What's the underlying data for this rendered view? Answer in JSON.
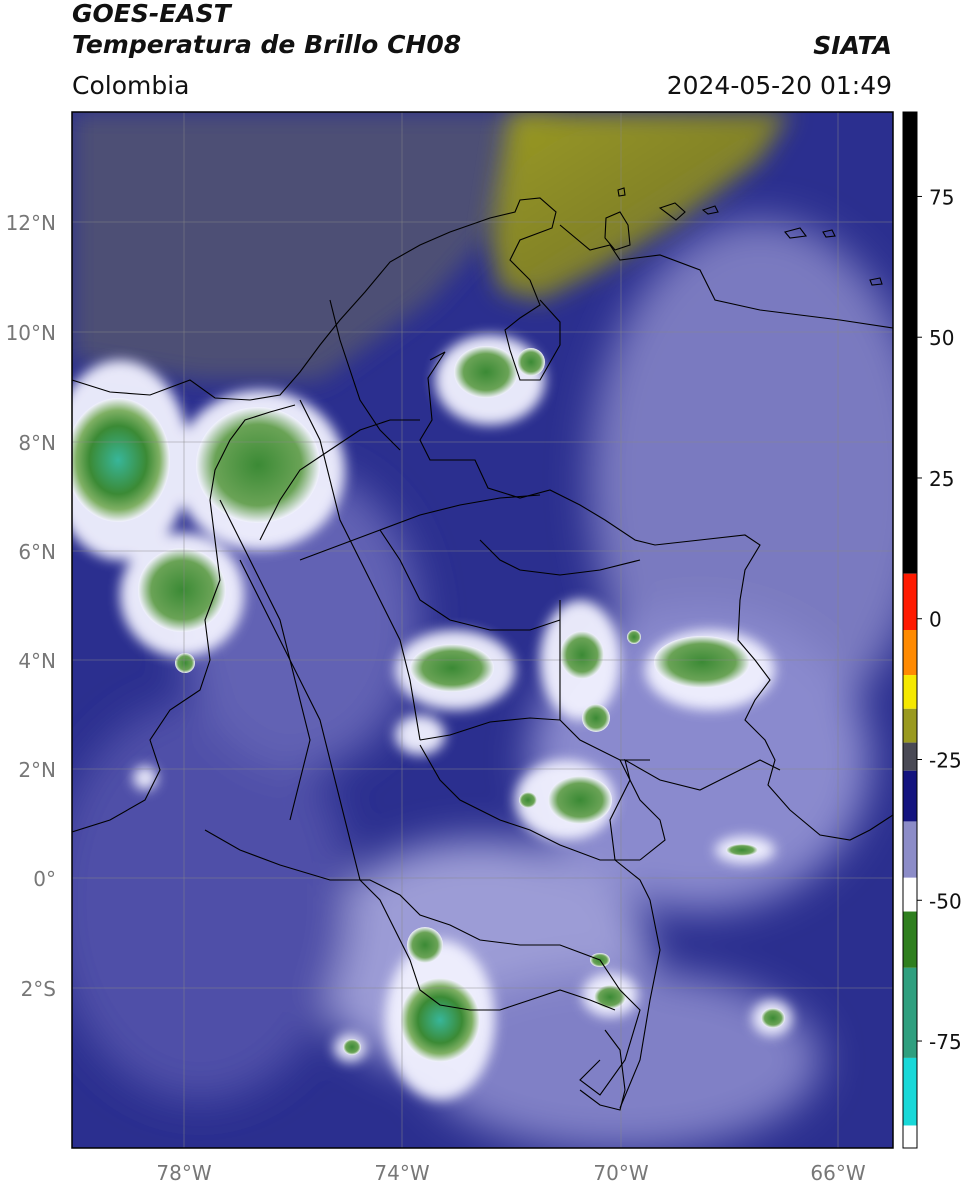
{
  "header": {
    "satellite": "GOES-EAST",
    "product": "Temperatura de Brillo CH08",
    "region": "Colombia",
    "source": "SIATA",
    "timestamp": "2024-05-20 01:49"
  },
  "map": {
    "lon_ticks": [
      "78°W",
      "74°W",
      "70°W",
      "66°W"
    ],
    "lat_ticks": [
      "12°N",
      "10°N",
      "8°N",
      "6°N",
      "4°N",
      "2°N",
      "0°",
      "2°S"
    ],
    "grid": true
  },
  "colorbar": {
    "ticks": [
      "75",
      "50",
      "25",
      "0",
      "-25",
      "-50",
      "-75"
    ],
    "segments": [
      {
        "from": 90,
        "to": 8,
        "color": "#000000"
      },
      {
        "from": 8,
        "to": -2,
        "color": "#ff1a00"
      },
      {
        "from": -2,
        "to": -10,
        "color": "#ff8a00"
      },
      {
        "from": -10,
        "to": -16,
        "color": "#f5e800"
      },
      {
        "from": -16,
        "to": -22,
        "color": "#9a9a20"
      },
      {
        "from": -22,
        "to": -27,
        "color": "#4a4a55"
      },
      {
        "from": -27,
        "to": -36,
        "color": "#14147f"
      },
      {
        "from": -36,
        "to": -46,
        "color": "#8c8cc8"
      },
      {
        "from": -46,
        "to": -52,
        "color": "#ffffff"
      },
      {
        "from": -52,
        "to": -62,
        "color": "#2f7f1f"
      },
      {
        "from": -62,
        "to": -78,
        "color": "#2f9f7f"
      },
      {
        "from": -78,
        "to": -90,
        "color": "#18d8d8"
      },
      {
        "from": -90,
        "to": -94,
        "color": "#ffffff"
      }
    ]
  },
  "colors": {
    "background_field": "#2b2f8f",
    "warm_plume": "#8f8f28",
    "gray_plume": "#4d5074",
    "cloud_white": "#f2f2ff",
    "cold_green": "#3b8a35",
    "cold_teal": "#38b69a",
    "border_line": "#000000"
  }
}
